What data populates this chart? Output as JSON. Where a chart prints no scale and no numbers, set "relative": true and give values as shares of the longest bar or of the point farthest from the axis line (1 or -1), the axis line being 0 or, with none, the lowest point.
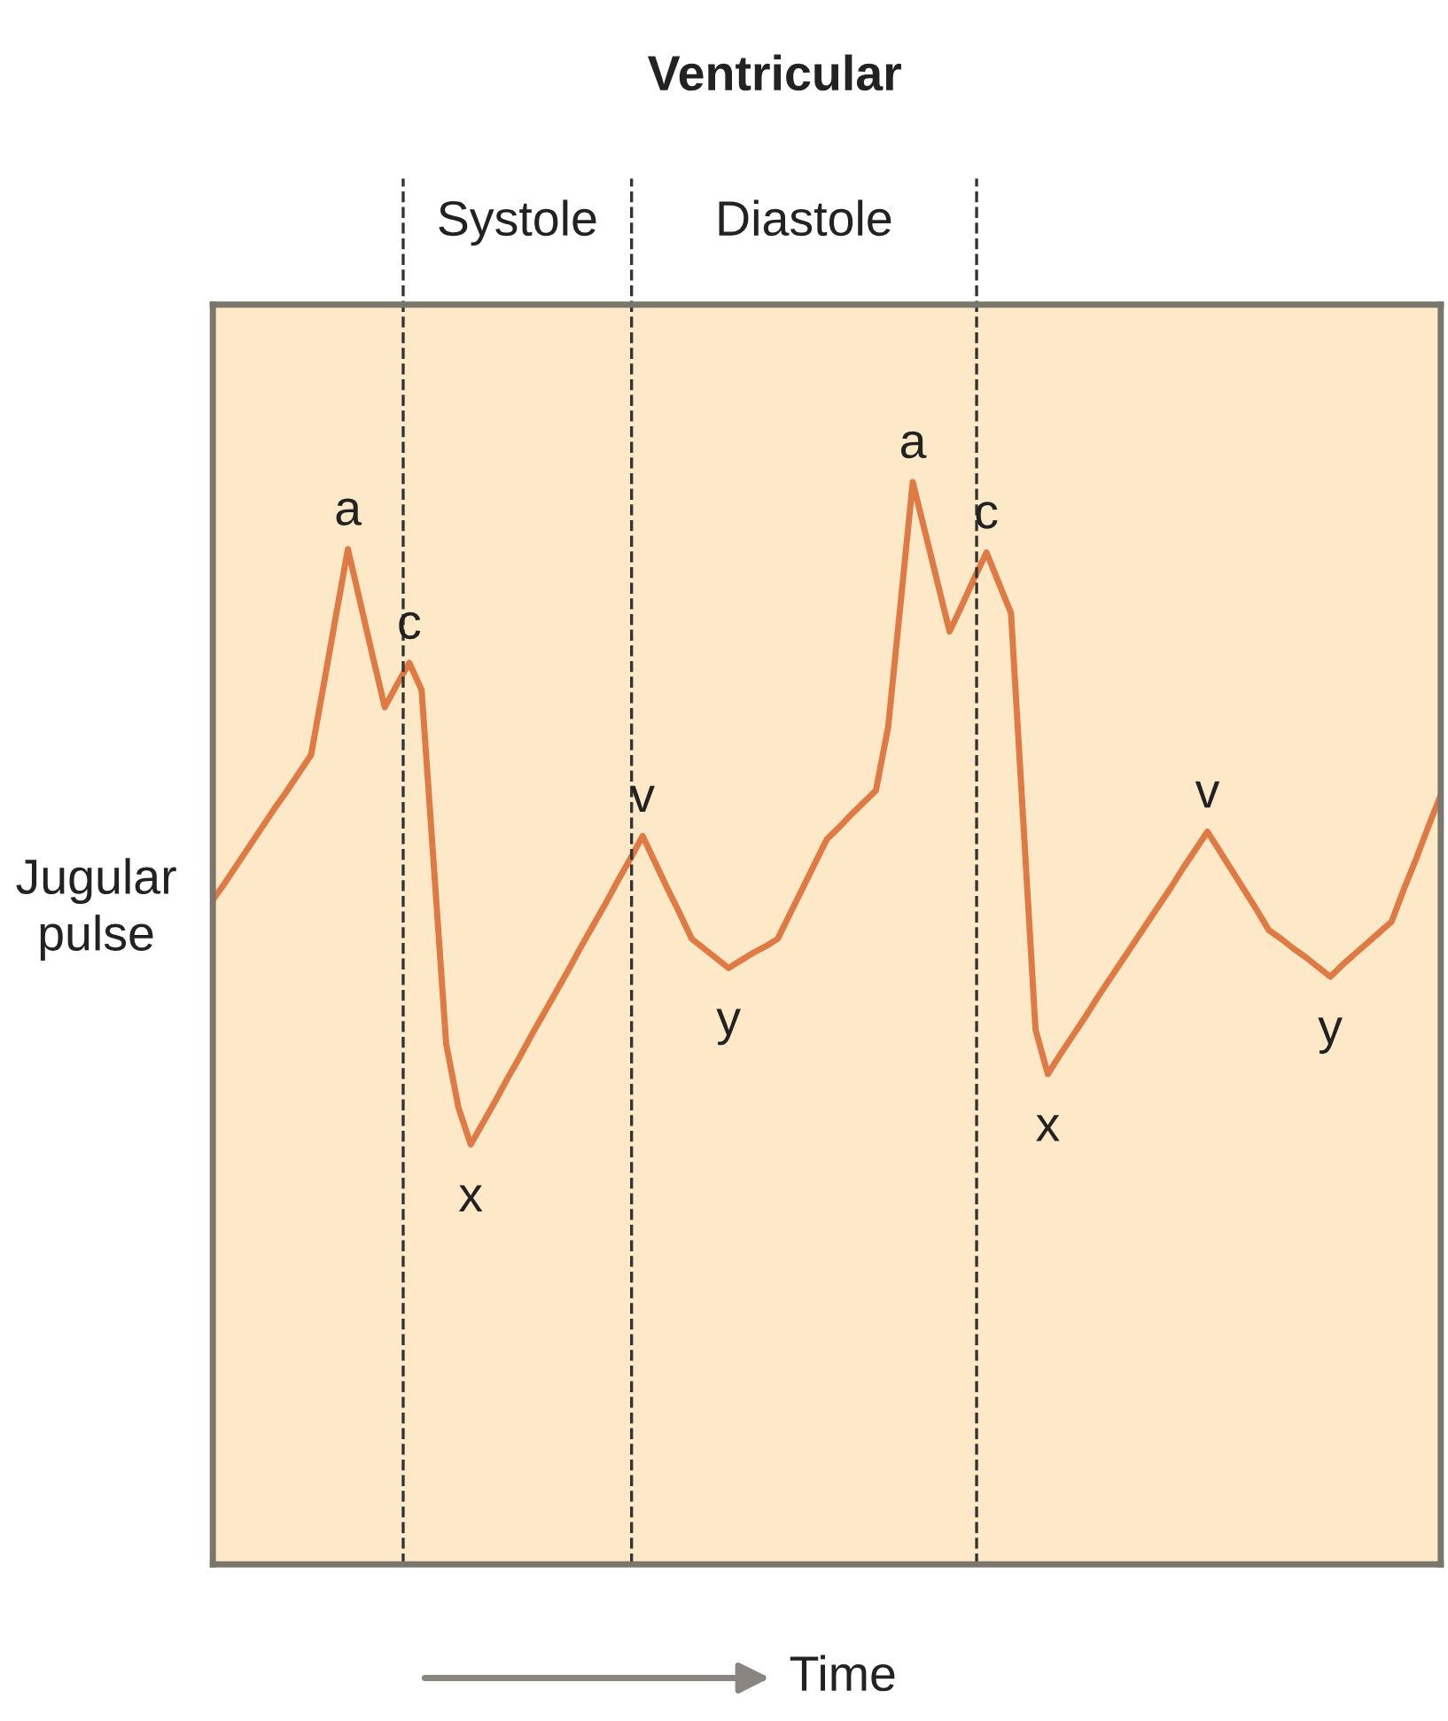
{
  "chart_data": {
    "type": "line",
    "title": "Ventricular",
    "ylabel": "Jugular\npulse",
    "relative": true,
    "marker": "none",
    "line_style": "solid",
    "categories": [
      null,
      null,
      null,
      null,
      null,
      null,
      null,
      null,
      null,
      null,
      null,
      null,
      null,
      null,
      null,
      null,
      null,
      null,
      null,
      null,
      null,
      null,
      null,
      null,
      null,
      null,
      null,
      null,
      null,
      null,
      null,
      null,
      null,
      null,
      null,
      null,
      null,
      null,
      null,
      null,
      null,
      null,
      null,
      null,
      null,
      null,
      null,
      null,
      null,
      null,
      null,
      null,
      null,
      null,
      null,
      null,
      null,
      null,
      null,
      null,
      null,
      null,
      null,
      null,
      null,
      null,
      null,
      null,
      null,
      null,
      null,
      null,
      null,
      null,
      null,
      null,
      null,
      null,
      null,
      null,
      null,
      null,
      null,
      null,
      null,
      null,
      null,
      null,
      null,
      null,
      null,
      null,
      null,
      null,
      null,
      null,
      null,
      null,
      null,
      null,
      null
    ],
    "series": [
      {
        "color": "#e07a45",
        "values": [
          0.614,
          0.63,
          0.647,
          0.664,
          0.681,
          0.698,
          0.714,
          0.731,
          0.748,
          0.811,
          0.875,
          0.938,
          0.889,
          0.84,
          0.792,
          0.813,
          0.833,
          0.808,
          0.645,
          0.481,
          0.422,
          0.388,
          0.408,
          0.428,
          0.449,
          0.469,
          0.49,
          0.51,
          0.53,
          0.55,
          0.571,
          0.591,
          0.611,
          0.632,
          0.652,
          0.673,
          0.649,
          0.625,
          0.602,
          0.578,
          0.569,
          0.56,
          0.551,
          0.558,
          0.565,
          0.571,
          0.578,
          0.601,
          0.624,
          0.647,
          0.67,
          0.681,
          0.693,
          0.704,
          0.715,
          0.774,
          0.887,
          1,
          0.954,
          0.908,
          0.862,
          0.886,
          0.911,
          0.935,
          0.907,
          0.879,
          0.687,
          0.494,
          0.453,
          0.471,
          0.488,
          0.505,
          0.523,
          0.54,
          0.557,
          0.574,
          0.591,
          0.608,
          0.625,
          0.643,
          0.66,
          0.677,
          0.659,
          0.641,
          0.623,
          0.605,
          0.586,
          0.578,
          0.569,
          0.561,
          0.552,
          0.543,
          0.554,
          0.564,
          0.574,
          0.584,
          0.594,
          0.624,
          0.652,
          0.682,
          0.711
        ]
      }
    ],
    "annotations": [
      "Systole",
      "Diastole",
      "Time",
      {
        "text": "a",
        "y": 0.938
      },
      {
        "text": "c",
        "y": 0.833
      },
      {
        "text": "x",
        "y": 0.388
      },
      {
        "text": "v",
        "y": 0.673
      },
      {
        "text": "y",
        "y": 0.551
      },
      {
        "text": "a",
        "y": 1
      },
      {
        "text": "c",
        "y": 0.935
      },
      {
        "text": "x",
        "y": 0.453
      },
      {
        "text": "v",
        "y": 0.677
      },
      {
        "text": "y",
        "y": 0.543
      }
    ]
  }
}
